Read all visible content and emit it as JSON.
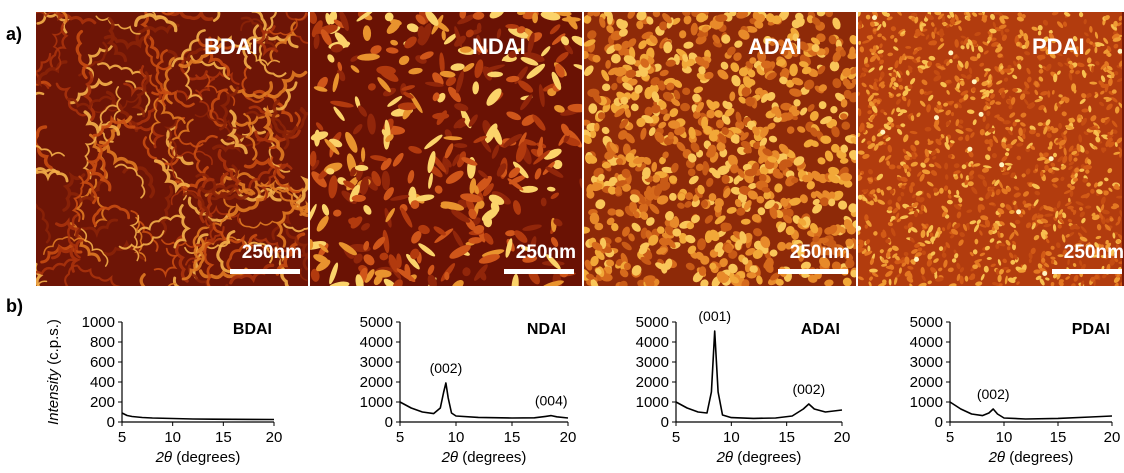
{
  "panel_labels": {
    "a": "a)",
    "b": "b)"
  },
  "afm_images": [
    {
      "name": "BDAI",
      "scale_bar": "250nm",
      "texture": "worm"
    },
    {
      "name": "NDAI",
      "scale_bar": "250nm",
      "texture": "rod"
    },
    {
      "name": "ADAI",
      "scale_bar": "250nm",
      "texture": "grain"
    },
    {
      "name": "PDAI",
      "scale_bar": "250nm",
      "texture": "fine"
    }
  ],
  "y_axis_label": "Intensity (c.p.s.)",
  "chart_data": [
    {
      "type": "line",
      "title": "BDAI",
      "xlabel": "2θ (degrees)",
      "ylabel": "Intensity (c.p.s.)",
      "xlim": [
        5,
        20
      ],
      "ylim": [
        0,
        1000
      ],
      "xticks": [
        5,
        10,
        15,
        20
      ],
      "yticks": [
        0,
        200,
        400,
        600,
        800,
        1000
      ],
      "x": [
        5,
        5.5,
        6,
        7,
        8,
        10,
        12,
        14,
        16,
        18,
        20
      ],
      "y": [
        90,
        65,
        55,
        45,
        40,
        35,
        30,
        28,
        27,
        26,
        25
      ],
      "annotations": []
    },
    {
      "type": "line",
      "title": "NDAI",
      "xlabel": "2θ (degrees)",
      "ylabel": "",
      "xlim": [
        5,
        20
      ],
      "ylim": [
        0,
        5000
      ],
      "xticks": [
        5,
        10,
        15,
        20
      ],
      "yticks": [
        0,
        1000,
        2000,
        3000,
        4000,
        5000
      ],
      "x": [
        5,
        6,
        7,
        8,
        8.6,
        8.9,
        9.1,
        9.3,
        9.6,
        10,
        12,
        15,
        17,
        18,
        18.5,
        19,
        20
      ],
      "y": [
        1000,
        700,
        500,
        420,
        700,
        1500,
        1950,
        1200,
        450,
        300,
        230,
        200,
        210,
        280,
        320,
        260,
        200
      ],
      "annotations": [
        {
          "text": "(002)",
          "x": 9.1,
          "y": 1950
        },
        {
          "text": "(004)",
          "x": 18.5,
          "y": 320
        }
      ]
    },
    {
      "type": "line",
      "title": "ADAI",
      "xlabel": "2θ (degrees)",
      "ylabel": "",
      "xlim": [
        5,
        20
      ],
      "ylim": [
        0,
        5000
      ],
      "xticks": [
        5,
        10,
        15,
        20
      ],
      "yticks": [
        0,
        1000,
        2000,
        3000,
        4000,
        5000
      ],
      "x": [
        5,
        6,
        7,
        7.8,
        8.2,
        8.5,
        8.8,
        9.2,
        10,
        12,
        14,
        15.5,
        16.5,
        17,
        17.5,
        18.5,
        20
      ],
      "y": [
        1000,
        700,
        500,
        450,
        1500,
        4550,
        1500,
        350,
        220,
        180,
        200,
        300,
        650,
        900,
        650,
        500,
        600
      ],
      "annotations": [
        {
          "text": "(001)",
          "x": 8.5,
          "y": 4550
        },
        {
          "text": "(002)",
          "x": 17,
          "y": 900
        }
      ]
    },
    {
      "type": "line",
      "title": "PDAI",
      "xlabel": "2θ (degrees)",
      "ylabel": "",
      "xlim": [
        5,
        20
      ],
      "ylim": [
        0,
        5000
      ],
      "xticks": [
        5,
        10,
        15,
        20
      ],
      "yticks": [
        0,
        1000,
        2000,
        3000,
        4000,
        5000
      ],
      "x": [
        5,
        6,
        7,
        8,
        8.6,
        9,
        9.4,
        10,
        12,
        15,
        18,
        20
      ],
      "y": [
        1000,
        650,
        400,
        320,
        450,
        650,
        400,
        200,
        150,
        180,
        250,
        300
      ],
      "annotations": [
        {
          "text": "(002)",
          "x": 9,
          "y": 650
        }
      ]
    }
  ]
}
